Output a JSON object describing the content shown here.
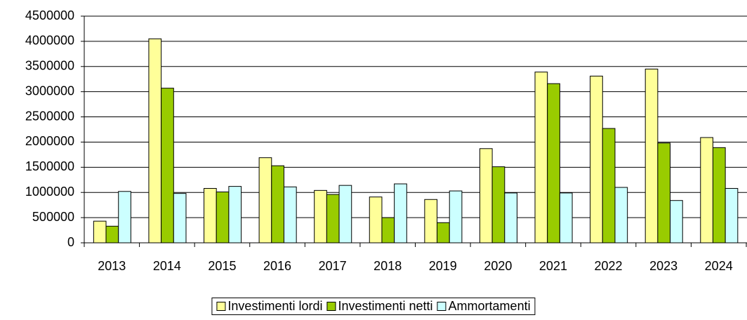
{
  "chart_data": {
    "type": "bar",
    "categories": [
      "2013",
      "2014",
      "2015",
      "2016",
      "2017",
      "2018",
      "2019",
      "2020",
      "2021",
      "2022",
      "2023",
      "2024"
    ],
    "series": [
      {
        "name": "Investimenti lordi",
        "color": "#ffff99",
        "values": [
          430000,
          4050000,
          1080000,
          1690000,
          1040000,
          910000,
          860000,
          1870000,
          3390000,
          3310000,
          3450000,
          2090000
        ]
      },
      {
        "name": "Investimenti netti",
        "color": "#99cc00",
        "values": [
          330000,
          3070000,
          1010000,
          1530000,
          960000,
          500000,
          400000,
          1510000,
          3160000,
          2270000,
          1980000,
          1890000
        ]
      },
      {
        "name": "Ammortamenti",
        "color": "#ccffff",
        "values": [
          1020000,
          980000,
          1120000,
          1110000,
          1140000,
          1170000,
          1030000,
          990000,
          990000,
          1100000,
          840000,
          1080000
        ]
      }
    ],
    "ylim": [
      0,
      4500000
    ],
    "yticks": [
      0,
      500000,
      1000000,
      1500000,
      2000000,
      2500000,
      3000000,
      3500000,
      4000000,
      4500000
    ],
    "grid": true
  }
}
